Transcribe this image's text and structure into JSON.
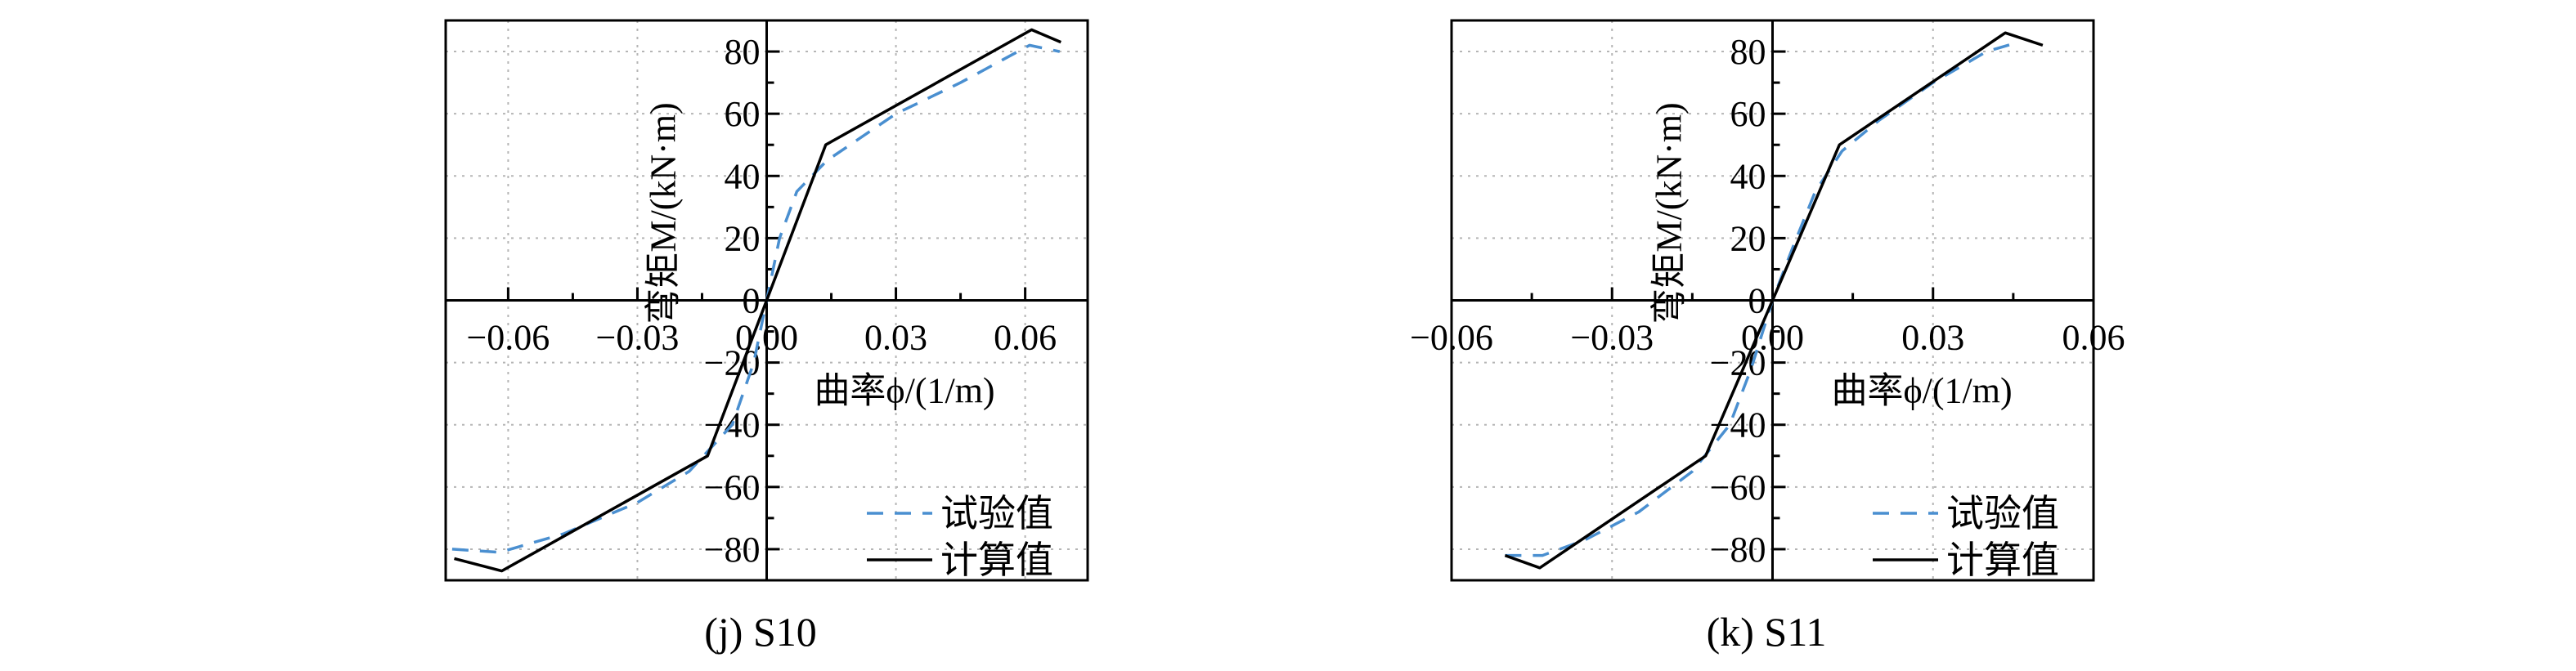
{
  "legend": {
    "test_label": "试验值",
    "calc_label": "计算值"
  },
  "colors": {
    "test": "#4a8fd0",
    "calc": "#000000",
    "grid": "#b5b5b5",
    "axis": "#000000"
  },
  "chart_data": [
    {
      "type": "line",
      "caption": "(j) S10",
      "xlabel": "曲率ϕ/(1/m)",
      "ylabel": "弯矩M/(kN·m)",
      "xlim": [
        -0.0745,
        0.0745
      ],
      "ylim": [
        -90,
        90
      ],
      "xticks": [
        -0.06,
        -0.03,
        0.0,
        0.03,
        0.06
      ],
      "xtick_labels": [
        "−0.06",
        "−0.03",
        "0.00",
        "0.03",
        "0.06"
      ],
      "yticks": [
        -80,
        -60,
        -40,
        -20,
        0,
        20,
        40,
        60,
        80
      ],
      "ytick_labels": [
        "−80",
        "−60",
        "−40",
        "−20",
        "0",
        "20",
        "40",
        "60",
        "80"
      ],
      "grid": true,
      "legend_position": "bottom-right",
      "series": [
        {
          "name": "试验值",
          "style": "dashed",
          "x": [
            -0.073,
            -0.062,
            -0.047,
            -0.03,
            -0.018,
            -0.008,
            -0.003,
            0.0,
            0.003,
            0.007,
            0.014,
            0.03,
            0.045,
            0.061,
            0.068
          ],
          "y": [
            -80,
            -81,
            -75,
            -65,
            -55,
            -40,
            -20,
            0,
            20,
            35,
            45,
            60,
            70,
            82,
            80
          ]
        },
        {
          "name": "计算值",
          "style": "solid",
          "x": [
            -0.0725,
            -0.0615,
            -0.0137,
            0.0,
            0.0137,
            0.0615,
            0.0683
          ],
          "y": [
            -83,
            -87,
            -50,
            0,
            50,
            87,
            83
          ]
        }
      ]
    },
    {
      "type": "line",
      "caption": "(k) S11",
      "xlabel": "曲率ϕ/(1/m)",
      "ylabel": "弯矩M/(kN·m)",
      "xlim": [
        -0.06,
        0.06
      ],
      "ylim": [
        -90,
        90
      ],
      "xticks": [
        -0.06,
        -0.03,
        0.0,
        0.03,
        0.06
      ],
      "xtick_labels": [
        "−0.06",
        "−0.03",
        "0.00",
        "0.03",
        "0.06"
      ],
      "yticks": [
        -80,
        -60,
        -40,
        -20,
        0,
        20,
        40,
        60,
        80
      ],
      "ytick_labels": [
        "−80",
        "−60",
        "−40",
        "−20",
        "0",
        "20",
        "40",
        "60",
        "80"
      ],
      "grid": true,
      "legend_position": "bottom-right",
      "series": [
        {
          "name": "试验值",
          "style": "dashed",
          "x": [
            -0.05,
            -0.043,
            -0.035,
            -0.025,
            -0.015,
            -0.008,
            -0.004,
            0.0,
            0.004,
            0.008,
            0.013,
            0.02,
            0.03,
            0.04,
            0.046
          ],
          "y": [
            -82,
            -82,
            -77,
            -68,
            -55,
            -40,
            -22,
            0,
            18,
            35,
            48,
            58,
            70,
            80,
            83
          ]
        },
        {
          "name": "计算值",
          "style": "solid",
          "x": [
            -0.05,
            -0.0435,
            -0.0125,
            0.0,
            0.0125,
            0.0435,
            0.0505
          ],
          "y": [
            -82,
            -86,
            -50,
            0,
            50,
            86,
            82
          ]
        }
      ]
    }
  ]
}
